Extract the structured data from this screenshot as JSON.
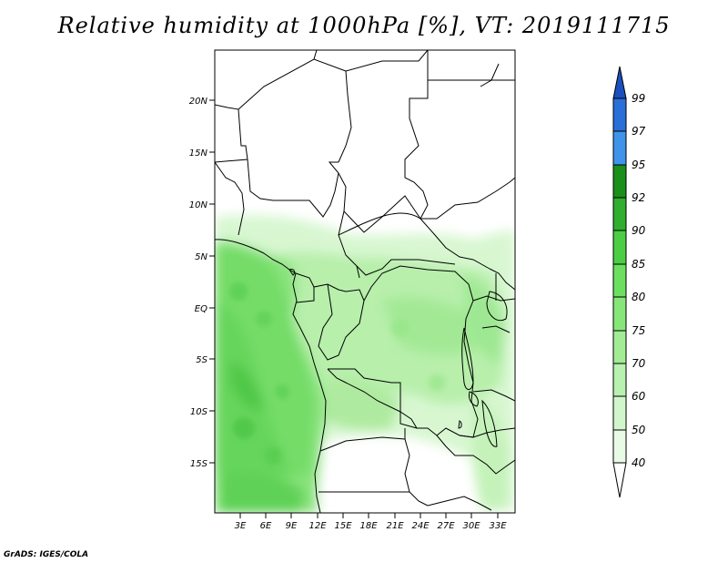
{
  "title": "Relative humidity at 1000hPa [%], VT: 2019111715",
  "credit": "GrADS: IGES/COLA",
  "map": {
    "lat_labels": [
      "20N",
      "15N",
      "10N",
      "5N",
      "EQ",
      "5S",
      "10S",
      "15S"
    ],
    "lon_labels": [
      "3E",
      "6E",
      "9E",
      "12E",
      "15E",
      "18E",
      "21E",
      "24E",
      "27E",
      "30E",
      "33E"
    ],
    "field": "Relative humidity at 1000hPa",
    "units": "%",
    "valid_time": "2019111715"
  },
  "colorbar": {
    "levels": [
      "40",
      "50",
      "60",
      "70",
      "75",
      "80",
      "85",
      "90",
      "92",
      "95",
      "97",
      "99"
    ],
    "colors": [
      "#ffffff",
      "#e8fbe4",
      "#d2f6cb",
      "#b9f1b0",
      "#a2ec96",
      "#87e67a",
      "#6ddf60",
      "#4cce44",
      "#2fae2f",
      "#1a8f1a",
      "#3f93ea",
      "#2a6fd9",
      "#1a4fbf"
    ]
  }
}
